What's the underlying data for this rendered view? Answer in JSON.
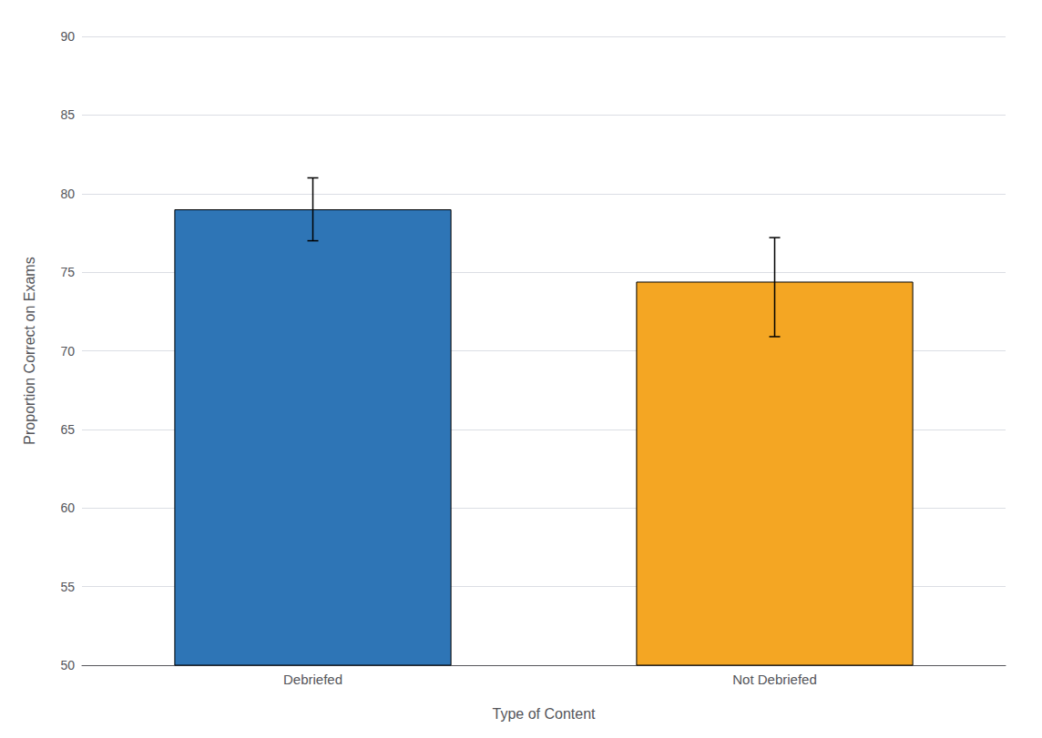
{
  "chart_data": {
    "type": "bar",
    "categories": [
      "Debriefed",
      "Not Debriefed"
    ],
    "values": [
      79.0,
      74.4
    ],
    "errors_upper": [
      2.0,
      2.8
    ],
    "errors_lower": [
      2.0,
      3.5
    ],
    "colors": [
      "#2E75B6",
      "#F4A623"
    ],
    "xlabel": "Type of Content",
    "ylabel": "Proportion Correct on Exams",
    "ylim": [
      50,
      90
    ],
    "yticks": [
      50,
      55,
      60,
      65,
      70,
      75,
      80,
      85,
      90
    ],
    "grid": true
  }
}
